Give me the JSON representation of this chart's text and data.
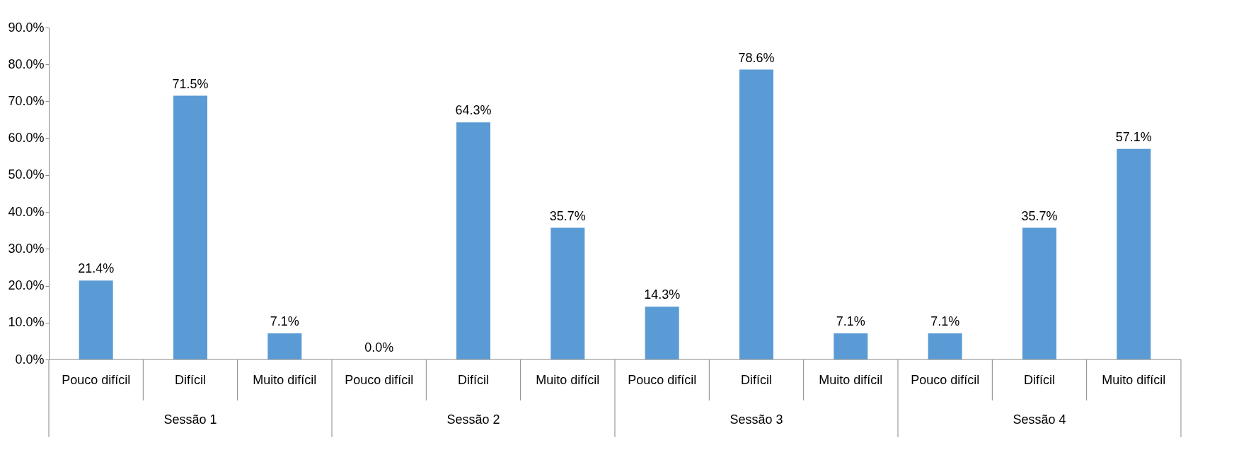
{
  "chart_data": {
    "type": "bar",
    "categories": [
      "Pouco difícil",
      "Difícil",
      "Muito difícil",
      "Pouco difícil",
      "Difícil",
      "Muito difícil",
      "Pouco difícil",
      "Difícil",
      "Muito difícil",
      "Pouco difícil",
      "Difícil",
      "Muito difícil"
    ],
    "values": [
      21.4,
      71.5,
      7.1,
      0.0,
      64.3,
      35.7,
      14.3,
      78.6,
      7.1,
      7.1,
      35.7,
      57.1
    ],
    "value_labels": [
      "21.4%",
      "71.5%",
      "7.1%",
      "0.0%",
      "64.3%",
      "35.7%",
      "14.3%",
      "78.6%",
      "7.1%",
      "7.1%",
      "35.7%",
      "57.1%"
    ],
    "color": "#5b9bd5",
    "annotations": [
      "Sessão 1",
      "Sessão 2",
      "Sessão 3",
      "Sessão 4"
    ],
    "ylim": [
      0,
      90
    ],
    "yticks": [
      {
        "value": 0,
        "label": "0.0%"
      },
      {
        "value": 10,
        "label": "10.0%"
      },
      {
        "value": 20,
        "label": "20.0%"
      },
      {
        "value": 30,
        "label": "30.0%"
      },
      {
        "value": 40,
        "label": "40.0%"
      },
      {
        "value": 50,
        "label": "50.0%"
      },
      {
        "value": 60,
        "label": "60.0%"
      },
      {
        "value": 70,
        "label": "70.0%"
      },
      {
        "value": 80,
        "label": "80.0%"
      },
      {
        "value": 90,
        "label": "90.0%"
      }
    ],
    "grid": false
  }
}
